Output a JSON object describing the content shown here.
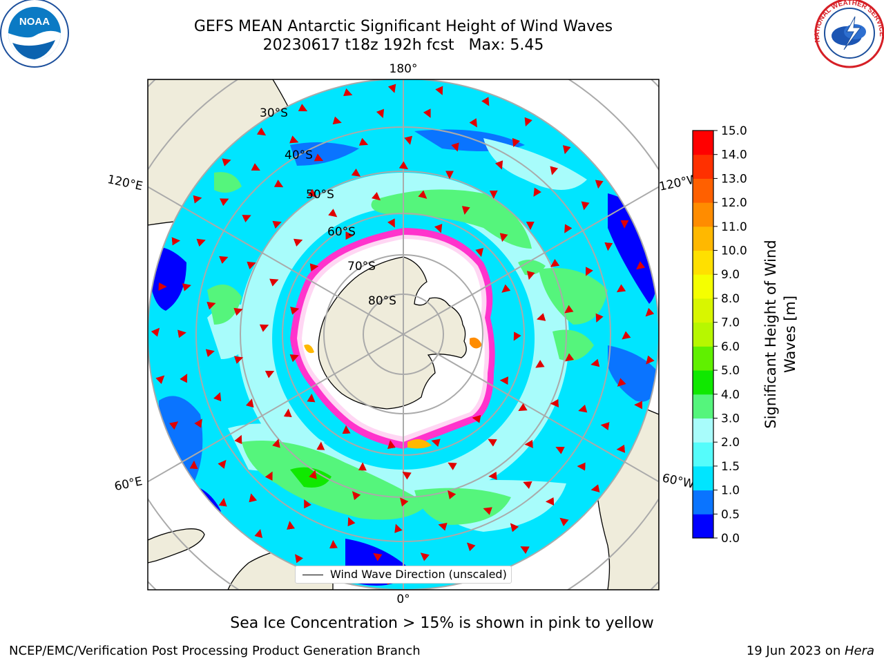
{
  "title": {
    "line1": "GEFS MEAN Antarctic Significant Height of Wind Waves",
    "line2": "20230617 t18z 192h fcst   Max: 5.45"
  },
  "logos": {
    "noaa": "NOAA",
    "nws": "NATIONAL WEATHER SERVICE"
  },
  "map": {
    "projection": "south-polar-stereographic",
    "longitude_labels": {
      "top": "180°",
      "bottom": "0°",
      "upper_left": "120°E",
      "lower_left": "60°E",
      "upper_right": "120°W",
      "lower_right": "60°W"
    },
    "latitude_labels": [
      "30°S",
      "40°S",
      "50°S",
      "60°S",
      "70°S",
      "80°S"
    ],
    "legend_label": "Wind Wave Direction (unscaled)",
    "colors": {
      "land": "#efecdb",
      "ice": "#ffffff",
      "ice_edge": "#ff33cc",
      "arrow": "#e00000"
    }
  },
  "colorbar": {
    "label": "Significant Height of Wind Waves [m]",
    "label_line1": "Significant Height of Wind",
    "label_line2": "Waves [m]",
    "ticks": [
      "0.0",
      "0.5",
      "1.0",
      "1.5",
      "2.0",
      "3.0",
      "4.0",
      "5.0",
      "6.0",
      "7.0",
      "8.0",
      "9.0",
      "10.0",
      "11.0",
      "12.0",
      "13.0",
      "14.0",
      "15.0"
    ],
    "colors": [
      "#0000ff",
      "#0a74ff",
      "#00e5ff",
      "#55fcfb",
      "#a8fcfb",
      "#55f57c",
      "#10e800",
      "#60f000",
      "#b7f700",
      "#d8f600",
      "#f5ff00",
      "#ffe000",
      "#ffb800",
      "#ff8c00",
      "#ff6000",
      "#ff3000",
      "#ff0000"
    ]
  },
  "note": "Sea Ice Concentration > 15% is shown in pink to yellow",
  "footer": {
    "left": "NCEP/EMC/Verification Post Processing Product Generation Branch",
    "right_date": "19 Jun 2023 on ",
    "right_machine": "Hera"
  }
}
